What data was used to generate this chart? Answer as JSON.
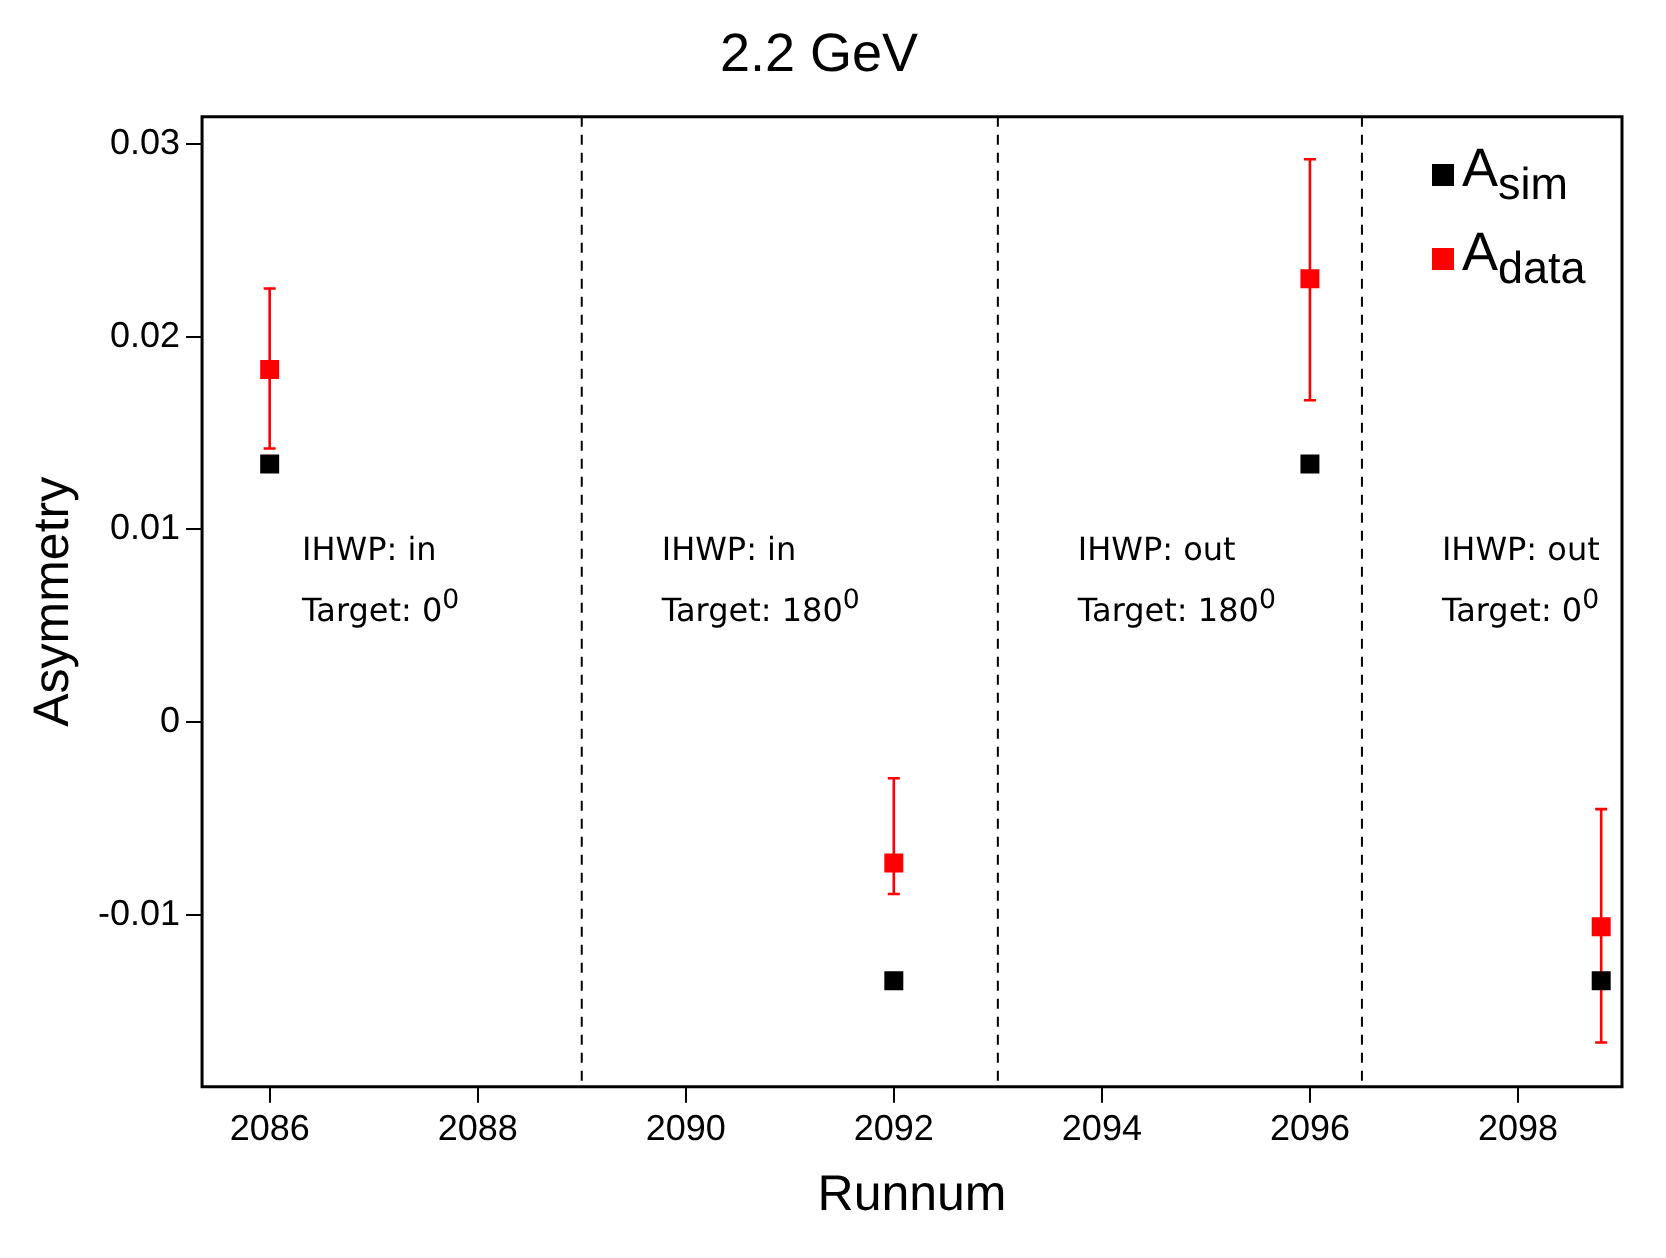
{
  "chart_data": {
    "type": "scatter",
    "title": "2.2 GeV",
    "xlabel": "Runnum",
    "ylabel": "Asymmetry",
    "xlim": [
      2085.35,
      2099
    ],
    "ylim": [
      -0.0189,
      0.0314
    ],
    "xticks": [
      2086,
      2088,
      2090,
      2092,
      2094,
      2096,
      2098
    ],
    "yticks": [
      -0.01,
      0,
      0.01,
      0.02,
      0.03
    ],
    "series": [
      {
        "name": "A$_{sim}$",
        "color": "#000000",
        "x": [
          2086,
          2092,
          2096,
          2098.8
        ],
        "values": [
          0.0134,
          -0.0134,
          0.0134,
          -0.0134
        ]
      },
      {
        "name": "A$_{data}$",
        "color": "#ff0000",
        "x": [
          2086,
          2092,
          2096,
          2098.8
        ],
        "values": [
          0.0183,
          -0.0073,
          0.023,
          -0.0106
        ],
        "errors": [
          [
            0.0142,
            0.0225
          ],
          [
            -0.0089,
            -0.0029
          ],
          [
            0.0167,
            0.0292
          ],
          [
            -0.0166,
            -0.0045
          ]
        ]
      }
    ],
    "ref_lines": [
      {
        "axis": "x",
        "value": 2089,
        "color": "#000000",
        "line_style": "dashed"
      },
      {
        "axis": "x",
        "value": 2093,
        "color": "#000000",
        "line_style": "dashed"
      },
      {
        "axis": "x",
        "value": 2096.5,
        "color": "#000000",
        "line_style": "dashed"
      }
    ],
    "annotations": [
      "IHWP: in\nTarget: 0$^{0}$",
      "IHWP: in\nTarget: 180$^{0}$",
      "IHWP: out\nTarget: 180$^{0}$",
      "IHWP: out\nTarget: 0$^{0}$"
    ],
    "marker": "square",
    "grid": false,
    "legend": "top right"
  }
}
